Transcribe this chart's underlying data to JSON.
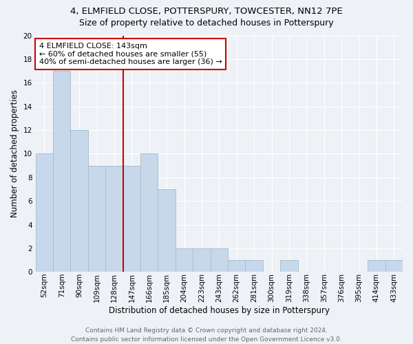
{
  "title": "4, ELMFIELD CLOSE, POTTERSPURY, TOWCESTER, NN12 7PE",
  "subtitle": "Size of property relative to detached houses in Potterspury",
  "xlabel": "Distribution of detached houses by size in Potterspury",
  "ylabel": "Number of detached properties",
  "bar_color": "#c8d8eb",
  "bar_edge_color": "#aabfcf",
  "categories": [
    "52sqm",
    "71sqm",
    "90sqm",
    "109sqm",
    "128sqm",
    "147sqm",
    "166sqm",
    "185sqm",
    "204sqm",
    "223sqm",
    "243sqm",
    "262sqm",
    "281sqm",
    "300sqm",
    "319sqm",
    "338sqm",
    "357sqm",
    "376sqm",
    "395sqm",
    "414sqm",
    "433sqm"
  ],
  "values": [
    10,
    17,
    12,
    9,
    9,
    9,
    10,
    7,
    2,
    2,
    2,
    1,
    1,
    0,
    1,
    0,
    0,
    0,
    0,
    1,
    1
  ],
  "ylim": [
    0,
    20
  ],
  "yticks": [
    0,
    2,
    4,
    6,
    8,
    10,
    12,
    14,
    16,
    18,
    20
  ],
  "vline_color": "#cc0000",
  "annotation_line1": "4 ELMFIELD CLOSE: 143sqm",
  "annotation_line2": "← 60% of detached houses are smaller (55)",
  "annotation_line3": "40% of semi-detached houses are larger (36) →",
  "annotation_box_color": "white",
  "annotation_box_edge_color": "#cc0000",
  "footer_line1": "Contains HM Land Registry data © Crown copyright and database right 2024.",
  "footer_line2": "Contains public sector information licensed under the Open Government Licence v3.0.",
  "background_color": "#eef2f7",
  "grid_color": "#ffffff",
  "title_fontsize": 9.5,
  "subtitle_fontsize": 9,
  "xlabel_fontsize": 8.5,
  "ylabel_fontsize": 8.5,
  "annotation_fontsize": 8,
  "footer_fontsize": 6.5,
  "tick_fontsize": 7.5
}
